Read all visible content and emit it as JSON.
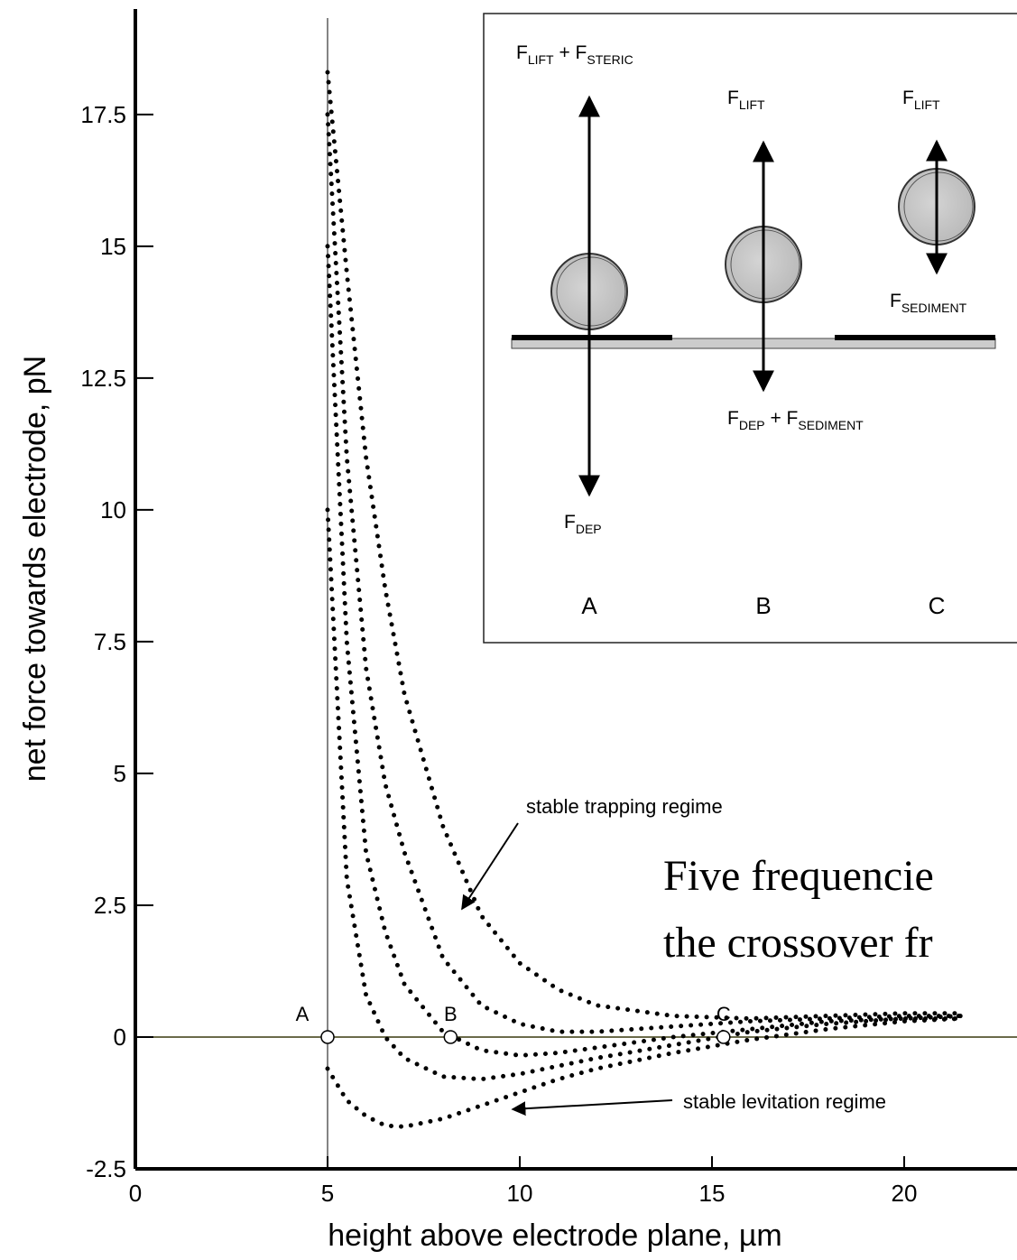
{
  "chart_data": {
    "type": "line",
    "x_label": "height above electrode plane, µm",
    "y_label": "net force towards electrode, pN",
    "xlim": [
      0,
      22.9
    ],
    "xticks": [
      0,
      5,
      10,
      15,
      20
    ],
    "ylim": [
      -2.5,
      19.5
    ],
    "yticks": [
      -2.5,
      0,
      2.5,
      5,
      7.5,
      10,
      12.5,
      15,
      17.5
    ],
    "x": [
      5,
      5.5,
      6,
      6.5,
      7,
      8,
      9,
      10,
      11,
      12,
      14,
      16,
      18,
      20,
      21.5
    ],
    "series": [
      {
        "color": "#000000",
        "values": [
          18.3,
          14.5,
          11,
          8.5,
          6.5,
          4,
          2.3,
          1.4,
          0.9,
          0.6,
          0.4,
          0.35,
          0.4,
          0.45,
          0.45
        ]
      },
      {
        "color": "#000000",
        "values": [
          17.5,
          11,
          7,
          4.8,
          3.5,
          1.5,
          0.6,
          0.25,
          0.1,
          0.1,
          0.2,
          0.3,
          0.35,
          0.4,
          0.4
        ]
      },
      {
        "color": "#000000",
        "values": [
          15,
          7.5,
          3.5,
          2,
          1,
          0.1,
          -0.25,
          -0.35,
          -0.3,
          -0.2,
          0,
          0.15,
          0.3,
          0.35,
          0.4
        ]
      },
      {
        "color": "#000000",
        "values": [
          10,
          3,
          0.8,
          0,
          -0.4,
          -0.75,
          -0.8,
          -0.7,
          -0.55,
          -0.4,
          -0.15,
          0.1,
          0.25,
          0.35,
          0.35
        ]
      },
      {
        "color": "#000000",
        "values": [
          -0.6,
          -1.2,
          -1.5,
          -1.68,
          -1.7,
          -1.55,
          -1.3,
          -1.05,
          -0.8,
          -0.6,
          -0.3,
          -0.05,
          0.15,
          0.3,
          0.35
        ]
      }
    ],
    "points": [
      {
        "label": "A",
        "x": 5,
        "y": 0
      },
      {
        "label": "B",
        "x": 8.2,
        "y": 0
      },
      {
        "label": "C",
        "x": 15.3,
        "y": 0
      }
    ],
    "annotations": [
      "stable trapping regime",
      "stable levitation regime"
    ],
    "overlay_text": [
      "Five frequencie",
      "the crossover fr"
    ],
    "inset": {
      "top_a": [
        "F",
        "LIFT",
        " + F",
        "STERIC"
      ],
      "top_b": [
        "F",
        "LIFT"
      ],
      "top_c": [
        "F",
        "LIFT"
      ],
      "bottom_a": [
        "F",
        "DEP"
      ],
      "bottom_b": [
        "F",
        "DEP",
        " + F",
        "SEDIMENT"
      ],
      "bottom_c": [
        "F",
        "SEDIMENT"
      ],
      "letters": [
        "A",
        "B",
        "C"
      ]
    }
  }
}
